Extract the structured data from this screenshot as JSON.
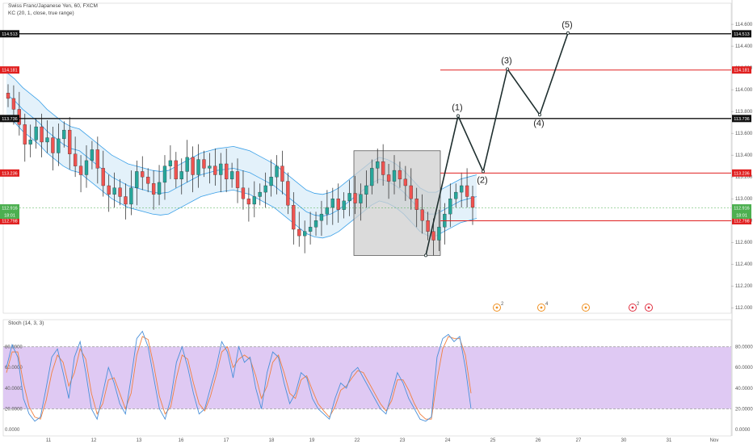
{
  "header": {
    "symbol_line": "Swiss Franc/Japanese Yen, 60, FXCM",
    "indicator_line": "KC (20, 1, close, true range)",
    "stoch_label": "Stoch (14, 3, 3)"
  },
  "colors": {
    "up": "#26a69a",
    "down": "#ef5350",
    "wick": "#222222",
    "keltner": "#3aa0e8",
    "keltner_fill": "#d7ebf8",
    "support_black": "#111111",
    "resist_red": "#e02020",
    "wave": "#1f2f2f",
    "box": "#cfcfcf",
    "stoch_band": "#dcc3f2",
    "stoch_k": "#4a90d9",
    "stoch_d": "#f08040",
    "price_tag_green": "#4caf50"
  },
  "chart_data": {
    "type": "line",
    "title": "Swiss Franc/Japanese Yen, 60, FXCM",
    "price_axis": {
      "ylim": [
        111.95,
        114.66
      ],
      "ticks": [
        "114.600",
        "114.400",
        "114.200",
        "114.000",
        "113.800",
        "113.600",
        "113.400",
        "113.200",
        "113.000",
        "112.800",
        "112.600",
        "112.400",
        "112.200",
        "112.000"
      ]
    },
    "x_axis": {
      "labels": [
        "11",
        "12",
        "13",
        "16",
        "17",
        "18",
        "19",
        "22",
        "23",
        "24",
        "25",
        "26",
        "27",
        "30",
        "31",
        "Nov"
      ]
    },
    "price_close": [
      113.92,
      113.82,
      113.68,
      113.5,
      113.54,
      113.66,
      113.52,
      113.56,
      113.42,
      113.55,
      113.63,
      113.41,
      113.3,
      113.22,
      113.35,
      113.45,
      113.28,
      113.12,
      113.04,
      113.1,
      113.02,
      112.95,
      113.1,
      113.25,
      113.2,
      113.14,
      113.04,
      113.15,
      113.3,
      113.35,
      113.18,
      113.25,
      113.38,
      113.22,
      113.36,
      113.28,
      113.3,
      113.22,
      113.32,
      113.18,
      113.25,
      113.1,
      113.0,
      112.95,
      113.02,
      113.06,
      113.12,
      113.2,
      113.3,
      113.16,
      112.94,
      112.72,
      112.66,
      112.7,
      112.74,
      112.8,
      112.86,
      112.92,
      113.0,
      112.9,
      112.98,
      113.05,
      112.96,
      113.04,
      113.12,
      113.28,
      113.34,
      113.22,
      113.16,
      113.26,
      113.18,
      113.12,
      113.0,
      112.9,
      112.8,
      112.7,
      112.62,
      112.74,
      112.86,
      113.0,
      113.06,
      113.12,
      113.02,
      112.92
    ],
    "keltner": {
      "mid": [
        113.96,
        113.9,
        113.82,
        113.76,
        113.7,
        113.62,
        113.56,
        113.5,
        113.46,
        113.44,
        113.38,
        113.32,
        113.26,
        113.2,
        113.16,
        113.12,
        113.1,
        113.08,
        113.06,
        113.05,
        113.06,
        113.1,
        113.14,
        113.18,
        113.22,
        113.24,
        113.26,
        113.27,
        113.28,
        113.26,
        113.24,
        113.2,
        113.16,
        113.12,
        113.06,
        113.0,
        112.94,
        112.88,
        112.85,
        112.84,
        112.86,
        112.9,
        112.96,
        113.02,
        113.08,
        113.14,
        113.18,
        113.16,
        113.12,
        113.06,
        112.98,
        112.9,
        112.86,
        112.86,
        112.9,
        112.94,
        112.98,
        113.0,
        113.02
      ],
      "upper": [
        114.16,
        114.1,
        114.02,
        113.96,
        113.9,
        113.82,
        113.76,
        113.7,
        113.66,
        113.64,
        113.58,
        113.52,
        113.46,
        113.4,
        113.36,
        113.32,
        113.3,
        113.28,
        113.26,
        113.25,
        113.26,
        113.3,
        113.34,
        113.38,
        113.42,
        113.44,
        113.46,
        113.47,
        113.48,
        113.46,
        113.44,
        113.4,
        113.36,
        113.32,
        113.26,
        113.2,
        113.14,
        113.08,
        113.05,
        113.04,
        113.06,
        113.1,
        113.16,
        113.22,
        113.28,
        113.34,
        113.38,
        113.36,
        113.32,
        113.26,
        113.18,
        113.1,
        113.06,
        113.06,
        113.1,
        113.14,
        113.18,
        113.2,
        113.22
      ],
      "lower": [
        113.76,
        113.7,
        113.62,
        113.56,
        113.5,
        113.42,
        113.36,
        113.3,
        113.26,
        113.24,
        113.18,
        113.12,
        113.06,
        113.0,
        112.96,
        112.92,
        112.9,
        112.88,
        112.86,
        112.85,
        112.86,
        112.9,
        112.94,
        112.98,
        113.02,
        113.04,
        113.06,
        113.07,
        113.08,
        113.06,
        113.04,
        113.0,
        112.96,
        112.92,
        112.86,
        112.8,
        112.74,
        112.68,
        112.65,
        112.64,
        112.66,
        112.7,
        112.76,
        112.82,
        112.88,
        112.94,
        112.98,
        112.96,
        112.92,
        112.86,
        112.78,
        112.7,
        112.66,
        112.66,
        112.7,
        112.74,
        112.78,
        112.8,
        112.82
      ]
    },
    "horizontal_levels": [
      {
        "value": 114.513,
        "label": "114.513",
        "color": "black"
      },
      {
        "value": 114.181,
        "label": "114.181",
        "color": "red"
      },
      {
        "value": 113.736,
        "label": "113.736",
        "color": "black"
      },
      {
        "value": 113.236,
        "label": "113.236",
        "color": "red"
      },
      {
        "value": 112.798,
        "label": "112.798",
        "color": "red"
      }
    ],
    "current_price": {
      "value": 112.916,
      "label": "112.916",
      "countdown": "18:01"
    },
    "elliott_wave": {
      "start": 112.48,
      "points": [
        {
          "label": "(1)",
          "price": 113.76
        },
        {
          "label": "(2)",
          "price": 113.25
        },
        {
          "label": "(3)",
          "price": 114.19
        },
        {
          "label": "(4)",
          "price": 113.77
        },
        {
          "label": "(5)",
          "price": 114.52
        }
      ]
    },
    "highlight_box": {
      "top": 113.44,
      "bottom": 112.48
    },
    "event_markers": [
      "2",
      "4",
      "",
      "2",
      ""
    ],
    "stochastic": {
      "ylim": [
        0,
        100
      ],
      "ticks": [
        "80.0000",
        "60.0000",
        "40.0000",
        "20.0000",
        "0.0000"
      ],
      "band": [
        20,
        80
      ],
      "k": [
        60,
        82,
        70,
        30,
        15,
        8,
        12,
        40,
        70,
        78,
        55,
        30,
        70,
        85,
        55,
        20,
        10,
        35,
        60,
        45,
        25,
        15,
        50,
        88,
        95,
        80,
        50,
        20,
        10,
        30,
        65,
        80,
        60,
        35,
        15,
        20,
        40,
        60,
        85,
        75,
        50,
        80,
        65,
        70,
        40,
        20,
        55,
        75,
        70,
        45,
        25,
        35,
        55,
        50,
        30,
        20,
        15,
        10,
        30,
        45,
        40,
        55,
        60,
        50,
        40,
        30,
        20,
        15,
        35,
        55,
        45,
        30,
        20,
        10,
        8,
        12,
        70,
        88,
        92,
        85,
        90,
        60,
        20
      ],
      "d": [
        55,
        75,
        75,
        45,
        22,
        12,
        10,
        28,
        55,
        72,
        65,
        42,
        55,
        78,
        68,
        35,
        15,
        25,
        48,
        50,
        35,
        20,
        35,
        72,
        90,
        87,
        62,
        32,
        15,
        22,
        50,
        72,
        68,
        45,
        25,
        18,
        32,
        52,
        75,
        80,
        60,
        68,
        72,
        68,
        52,
        30,
        42,
        65,
        72,
        55,
        35,
        30,
        48,
        52,
        38,
        25,
        18,
        12,
        22,
        38,
        42,
        50,
        57,
        55,
        45,
        35,
        25,
        18,
        28,
        48,
        48,
        38,
        25,
        15,
        10,
        10,
        48,
        78,
        90,
        88,
        88,
        72,
        35
      ]
    }
  }
}
